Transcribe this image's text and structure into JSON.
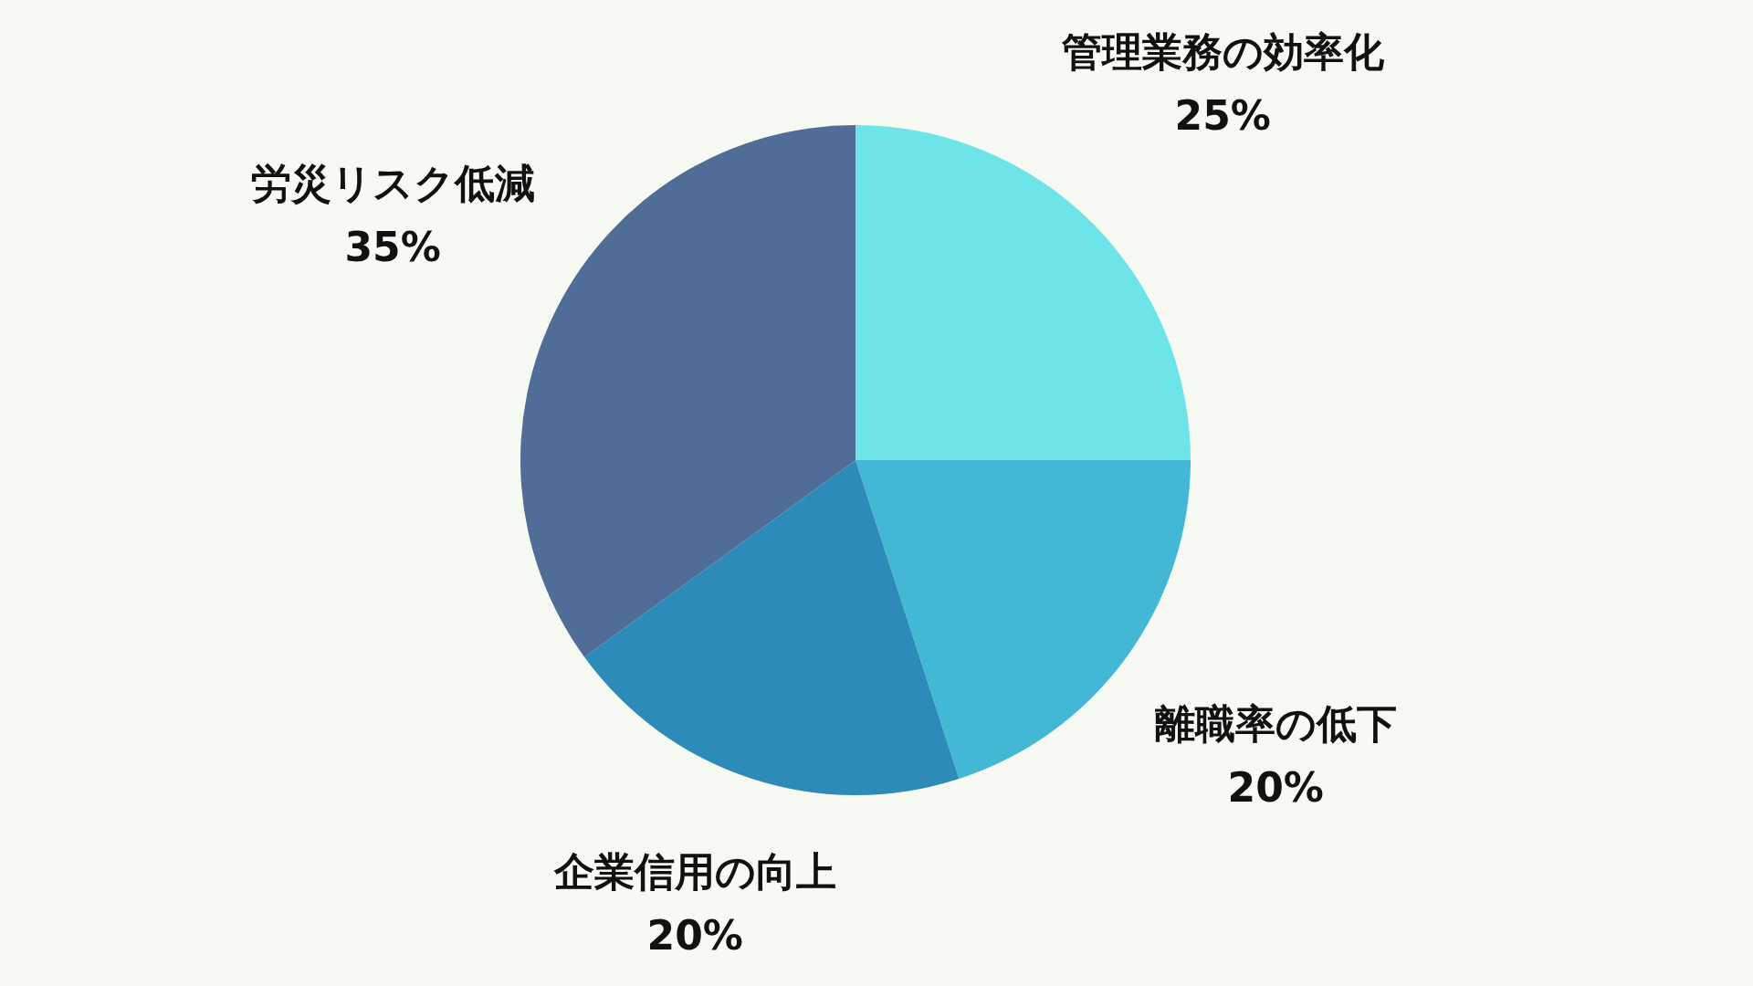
{
  "chart_data": {
    "type": "pie",
    "categories": [
      "管理業務の効率化",
      "離職率の低下",
      "企業信用の向上",
      "労災リスク低減"
    ],
    "values": [
      25,
      20,
      20,
      35
    ],
    "colors": [
      "#6ce4e8",
      "#43b7d6",
      "#2d8bba",
      "#4f6d97"
    ],
    "value_labels": [
      "25%",
      "20%",
      "20%",
      "35%"
    ]
  }
}
